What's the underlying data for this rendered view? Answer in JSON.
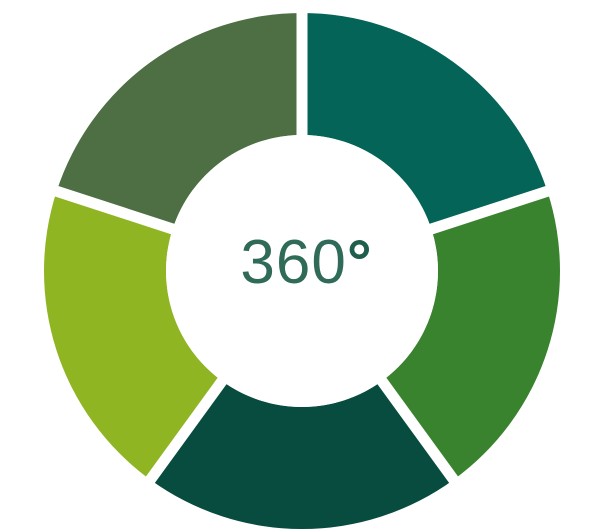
{
  "diagram": {
    "center": {
      "number": "360",
      "symbol": "°"
    },
    "segments": [
      {
        "name": "segment-top-right",
        "color": "#036457"
      },
      {
        "name": "segment-right",
        "color": "#3a832e"
      },
      {
        "name": "segment-bottom",
        "color": "#074c3e"
      },
      {
        "name": "segment-left",
        "color": "#8fb523"
      },
      {
        "name": "segment-top-left",
        "color": "#4e6f44"
      }
    ],
    "background": "#ffffff"
  }
}
